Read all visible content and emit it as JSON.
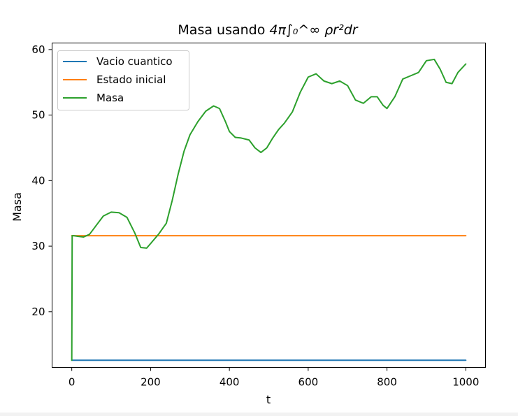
{
  "chart_data": {
    "type": "line",
    "title_prefix": "Masa usando ",
    "title_math": "4π∫₀^∞ ρr²dr",
    "title": "Masa usando 4π∫₀^∞ ρr²dr",
    "xlabel": "t",
    "ylabel": "Masa",
    "xlim": [
      -50,
      1050
    ],
    "ylim": [
      11.5,
      61.0
    ],
    "xticks": [
      0,
      200,
      400,
      600,
      800,
      1000
    ],
    "yticks": [
      20,
      30,
      40,
      50,
      60
    ],
    "grid": false,
    "legend_position": "upper-left",
    "series": [
      {
        "name": "Vacio cuantico",
        "color": "#1f77b4",
        "x": [
          0,
          1000
        ],
        "y": [
          12.6,
          12.6
        ]
      },
      {
        "name": "Estado inicial",
        "color": "#ff7f0e",
        "x": [
          0,
          1000
        ],
        "y": [
          31.6,
          31.6
        ]
      },
      {
        "name": "Masa",
        "color": "#2ca02c",
        "x": [
          0,
          1,
          5,
          15,
          30,
          45,
          60,
          80,
          100,
          120,
          140,
          160,
          175,
          190,
          200,
          220,
          240,
          255,
          270,
          285,
          300,
          320,
          340,
          360,
          375,
          390,
          400,
          415,
          430,
          450,
          465,
          480,
          495,
          510,
          525,
          540,
          560,
          580,
          600,
          620,
          640,
          660,
          680,
          700,
          720,
          740,
          760,
          775,
          790,
          800,
          820,
          840,
          860,
          880,
          900,
          920,
          935,
          950,
          965,
          980,
          1000
        ],
        "y": [
          12.6,
          31.6,
          31.6,
          31.5,
          31.4,
          31.8,
          33.0,
          34.6,
          35.2,
          35.1,
          34.4,
          32.0,
          29.8,
          29.7,
          30.4,
          31.8,
          33.5,
          37.0,
          41.0,
          44.5,
          47.0,
          49.0,
          50.6,
          51.4,
          51.0,
          49.0,
          47.5,
          46.6,
          46.5,
          46.2,
          45.0,
          44.3,
          45.0,
          46.5,
          47.8,
          48.8,
          50.5,
          53.5,
          55.8,
          56.3,
          55.2,
          54.8,
          55.2,
          54.5,
          52.3,
          51.8,
          52.8,
          52.8,
          51.5,
          51.0,
          52.8,
          55.5,
          56.0,
          56.5,
          58.3,
          58.5,
          57.0,
          55.0,
          54.8,
          56.5,
          57.8
        ]
      }
    ]
  }
}
